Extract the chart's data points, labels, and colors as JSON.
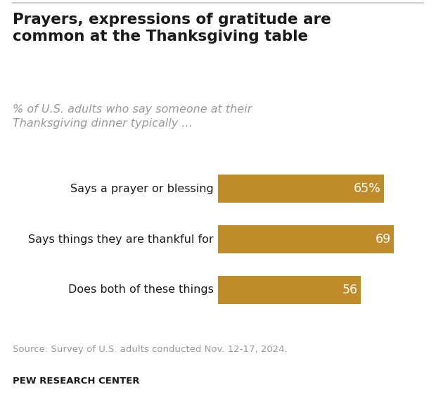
{
  "title": "Prayers, expressions of gratitude are\ncommon at the Thanksgiving table",
  "subtitle": "% of U.S. adults who say someone at their\nThanksgiving dinner typically ...",
  "categories": [
    "Says a prayer or blessing",
    "Says things they are thankful for",
    "Does both of these things"
  ],
  "values": [
    65,
    69,
    56
  ],
  "labels": [
    "65%",
    "69",
    "56"
  ],
  "bar_color": "#C08B2A",
  "text_color_on_bar": "#ffffff",
  "title_color": "#1a1a1a",
  "subtitle_color": "#999999",
  "source_text": "Source: Survey of U.S. adults conducted Nov. 12-17, 2024.",
  "branding_text": "PEW RESEARCH CENTER",
  "source_color": "#999999",
  "background_color": "#ffffff",
  "xlim": [
    0,
    80
  ],
  "bar_height": 0.55
}
